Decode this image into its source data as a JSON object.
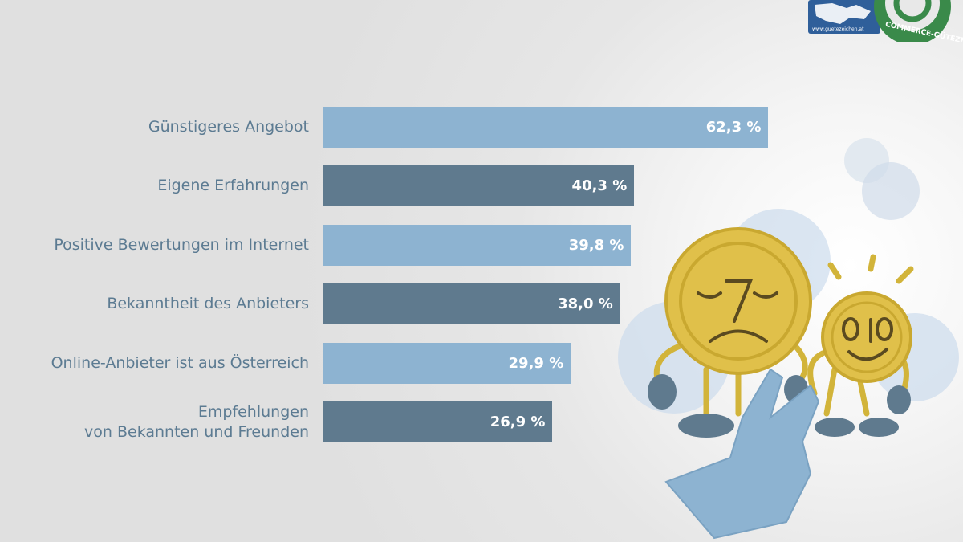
{
  "logo": {
    "url_text": "www.guetezeichen.at",
    "seal_text": "E-COMMERCE-GÜTEZEICHEN"
  },
  "colors": {
    "light_bar": "#8db3d1",
    "dark_bar": "#5f7a8e",
    "label": "#5c7b92",
    "value_text": "#ffffff"
  },
  "chart_data": {
    "type": "bar",
    "orientation": "horizontal",
    "categories": [
      "Günstigeres Angebot",
      "Eigene Erfahrungen",
      "Positive Bewertungen im Internet",
      "Bekanntheit des Anbieters",
      "Online-Anbieter ist aus Österreich",
      "Empfehlungen\nvon Bekannten und Freunden"
    ],
    "values": [
      62.3,
      40.3,
      39.8,
      38.0,
      29.9,
      26.9
    ],
    "value_labels": [
      "62,3 %",
      "40,3 %",
      "39,8 %",
      "38,0 %",
      "29,9 %",
      "26,9 %"
    ],
    "bar_colors": [
      "#8db3d1",
      "#5f7a8e",
      "#8db3d1",
      "#5f7a8e",
      "#8db3d1",
      "#5f7a8e"
    ],
    "unit": "%",
    "grid": false,
    "legend": "none",
    "title": "",
    "xlabel": "",
    "ylabel": ""
  }
}
